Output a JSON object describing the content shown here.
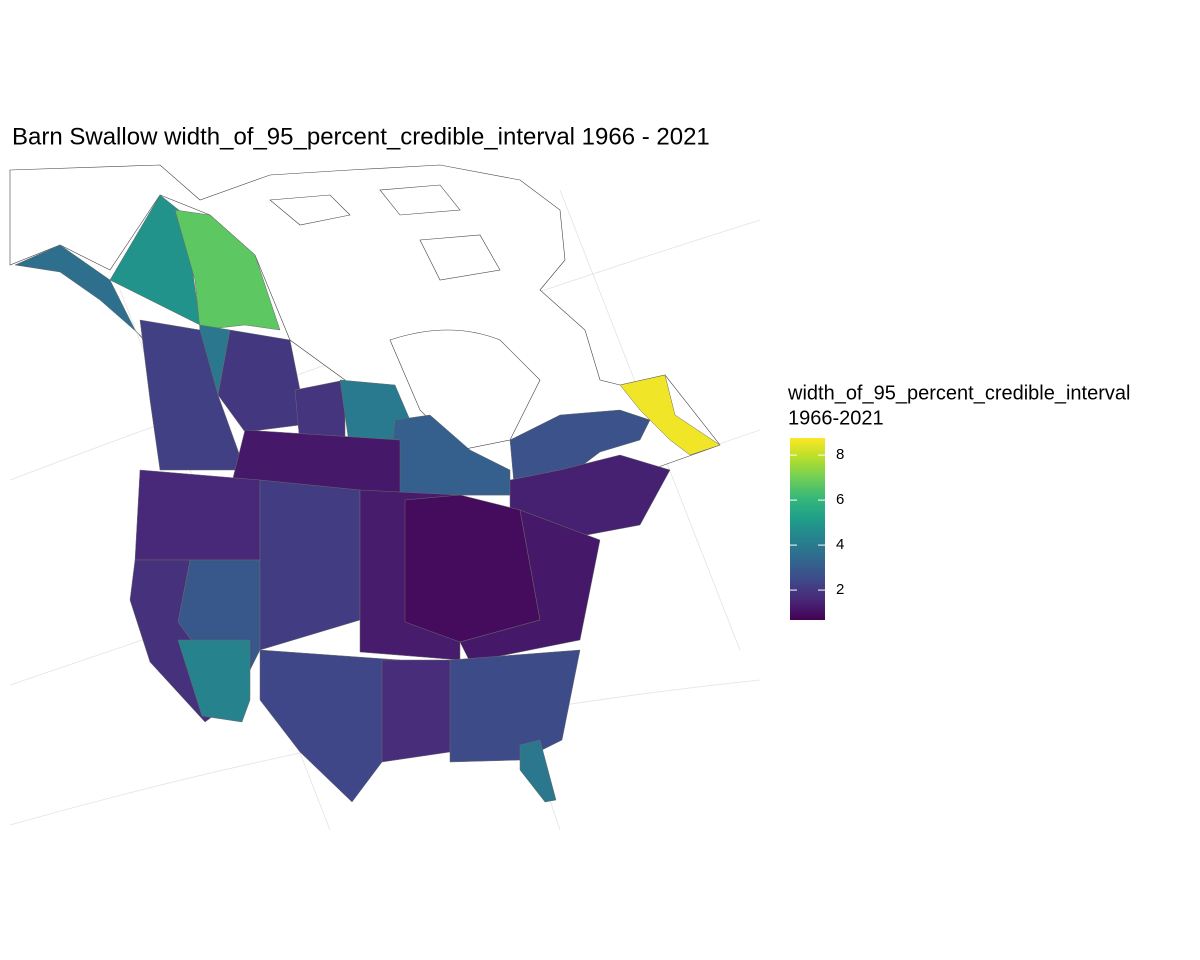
{
  "map": {
    "title": "Barn Swallow width_of_95_percent_credible_interval 1966 - 2021",
    "legend_title": [
      "width_of_95_percent_credible_interval",
      "1966-2021"
    ],
    "palette": "viridis",
    "colorbar": {
      "lim": [
        0.67,
        8.76
      ],
      "ticks": [
        2,
        4,
        6,
        8
      ]
    },
    "regions": {
      "values": [
        4.8,
        6.7,
        3.6,
        3.9,
        2.0,
        2.2,
        1.9,
        4.0,
        3.1,
        2.7,
        8.6,
        1.2,
        1.4,
        1.6,
        2.9,
        1.8,
        4.3,
        2.1,
        1.3,
        2.4,
        1.7,
        0.9,
        1.2,
        2.5,
        3.9
      ]
    }
  }
}
